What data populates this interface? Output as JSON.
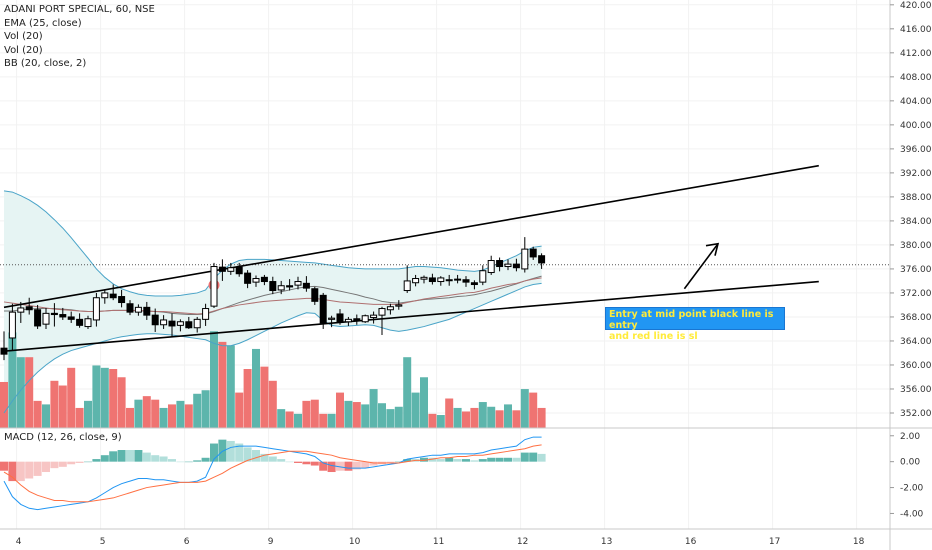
{
  "legend": {
    "symbol": "ADANI PORT SPECIAL, 60, NSE",
    "ema": "EMA (25, close)",
    "vol1": "Vol (20)",
    "vol2": "Vol (20)",
    "bb": "BB (20, close, 2)"
  },
  "macd_label": "MACD (12, 26, close, 9)",
  "annotation": "Entry at mid point black line is entry\n and red  line is sl",
  "colors": {
    "up": "#ffffff",
    "down": "#000000",
    "vol_up": "#5db5ac",
    "vol_down": "#ef7472",
    "bb_band": "#4aa4c8",
    "bb_fill": "#e6f4f3",
    "ema": "#b07070",
    "bb_basis": "#777777",
    "macd_line": "#2196f3",
    "signal_line": "#ff7043",
    "hist_up": "#5db5ac",
    "hist_down": "#ef7472",
    "hist_up_light": "#b2dfdb",
    "hist_down_light": "#f7c5c4",
    "marker": "#ef6f6f"
  },
  "chart_data": {
    "type": "candlestick",
    "title": "ADANI PORT SPECIAL, 60, NSE",
    "price_axis": {
      "ticks": [
        352,
        356,
        360,
        364,
        368,
        372,
        376,
        380,
        384,
        388,
        392,
        396,
        400,
        404,
        408,
        412,
        416,
        420
      ],
      "range": [
        349.5,
        420.8
      ]
    },
    "time_axis": {
      "ticks": [
        "4",
        "5",
        "6",
        "9",
        "10",
        "11",
        "12",
        "13",
        "16",
        "17",
        "18"
      ]
    },
    "macd_axis": {
      "ticks": [
        "2.00",
        "0.00",
        "-2.00",
        "-4.00"
      ],
      "range": [
        -5.2,
        2.6
      ]
    },
    "candles": [
      {
        "o": 362.8,
        "h": 365.6,
        "l": 360.8,
        "c": 361.8
      },
      {
        "o": 364.5,
        "h": 370.2,
        "l": 362.5,
        "c": 368.8
      },
      {
        "o": 368.8,
        "h": 370.5,
        "l": 367.0,
        "c": 369.5
      },
      {
        "o": 369.7,
        "h": 371.2,
        "l": 368.4,
        "c": 369.2
      },
      {
        "o": 369.2,
        "h": 370.0,
        "l": 366.0,
        "c": 366.5
      },
      {
        "o": 366.8,
        "h": 369.5,
        "l": 366.0,
        "c": 368.6
      },
      {
        "o": 368.6,
        "h": 370.3,
        "l": 366.4,
        "c": 368.4
      },
      {
        "o": 368.4,
        "h": 369.5,
        "l": 367.5,
        "c": 368.0
      },
      {
        "o": 368.0,
        "h": 368.9,
        "l": 367.0,
        "c": 367.6
      },
      {
        "o": 367.6,
        "h": 368.6,
        "l": 366.2,
        "c": 366.6
      },
      {
        "o": 366.4,
        "h": 368.2,
        "l": 366.0,
        "c": 367.7
      },
      {
        "o": 367.5,
        "h": 372.0,
        "l": 366.4,
        "c": 371.2
      },
      {
        "o": 371.2,
        "h": 372.6,
        "l": 370.2,
        "c": 372.0
      },
      {
        "o": 371.8,
        "h": 373.4,
        "l": 370.8,
        "c": 371.2
      },
      {
        "o": 371.4,
        "h": 372.5,
        "l": 369.6,
        "c": 370.4
      },
      {
        "o": 370.2,
        "h": 370.8,
        "l": 368.3,
        "c": 368.8
      },
      {
        "o": 368.8,
        "h": 370.1,
        "l": 368.2,
        "c": 369.6
      },
      {
        "o": 369.6,
        "h": 370.5,
        "l": 367.5,
        "c": 368.3
      },
      {
        "o": 368.3,
        "h": 369.4,
        "l": 365.5,
        "c": 366.7
      },
      {
        "o": 366.7,
        "h": 368.3,
        "l": 366.0,
        "c": 367.5
      },
      {
        "o": 367.3,
        "h": 368.6,
        "l": 364.7,
        "c": 366.5
      },
      {
        "o": 366.6,
        "h": 367.6,
        "l": 365.6,
        "c": 367.2
      },
      {
        "o": 367.2,
        "h": 368.0,
        "l": 366.0,
        "c": 366.2
      },
      {
        "o": 366.2,
        "h": 368.0,
        "l": 365.4,
        "c": 367.6
      },
      {
        "o": 367.6,
        "h": 370.2,
        "l": 366.5,
        "c": 369.4
      },
      {
        "o": 369.8,
        "h": 377.0,
        "l": 369.5,
        "c": 376.4
      },
      {
        "o": 376.3,
        "h": 377.6,
        "l": 374.0,
        "c": 375.6
      },
      {
        "o": 375.6,
        "h": 377.0,
        "l": 375.0,
        "c": 376.2
      },
      {
        "o": 376.3,
        "h": 377.0,
        "l": 374.7,
        "c": 375.2
      },
      {
        "o": 375.3,
        "h": 375.8,
        "l": 372.8,
        "c": 373.6
      },
      {
        "o": 373.8,
        "h": 374.9,
        "l": 373.0,
        "c": 374.4
      },
      {
        "o": 374.6,
        "h": 375.0,
        "l": 373.3,
        "c": 373.9
      },
      {
        "o": 373.9,
        "h": 374.7,
        "l": 371.8,
        "c": 372.4
      },
      {
        "o": 372.5,
        "h": 374.0,
        "l": 371.8,
        "c": 373.2
      },
      {
        "o": 373.2,
        "h": 374.3,
        "l": 372.4,
        "c": 373.0
      },
      {
        "o": 373.3,
        "h": 374.7,
        "l": 372.6,
        "c": 373.9
      },
      {
        "o": 373.6,
        "h": 374.8,
        "l": 372.2,
        "c": 372.8
      },
      {
        "o": 372.7,
        "h": 373.0,
        "l": 370.0,
        "c": 370.6
      },
      {
        "o": 371.6,
        "h": 372.0,
        "l": 366.0,
        "c": 367.0
      },
      {
        "o": 367.6,
        "h": 368.2,
        "l": 366.3,
        "c": 367.8
      },
      {
        "o": 368.5,
        "h": 369.3,
        "l": 366.7,
        "c": 367.1
      },
      {
        "o": 367.2,
        "h": 368.0,
        "l": 366.5,
        "c": 367.6
      },
      {
        "o": 367.7,
        "h": 368.4,
        "l": 366.7,
        "c": 367.4
      },
      {
        "o": 367.2,
        "h": 368.4,
        "l": 367.0,
        "c": 368.2
      },
      {
        "o": 367.9,
        "h": 368.9,
        "l": 366.9,
        "c": 368.3
      },
      {
        "o": 368.3,
        "h": 369.7,
        "l": 365.0,
        "c": 369.4
      },
      {
        "o": 369.2,
        "h": 370.2,
        "l": 368.4,
        "c": 369.7
      },
      {
        "o": 369.8,
        "h": 370.8,
        "l": 369.2,
        "c": 370.0
      },
      {
        "o": 372.4,
        "h": 376.6,
        "l": 372.0,
        "c": 374.0
      },
      {
        "o": 373.7,
        "h": 375.0,
        "l": 373.1,
        "c": 374.4
      },
      {
        "o": 374.3,
        "h": 374.9,
        "l": 373.6,
        "c": 374.6
      },
      {
        "o": 374.5,
        "h": 375.2,
        "l": 373.4,
        "c": 373.9
      },
      {
        "o": 373.9,
        "h": 374.8,
        "l": 373.2,
        "c": 374.5
      },
      {
        "o": 374.2,
        "h": 375.0,
        "l": 373.2,
        "c": 374.1
      },
      {
        "o": 374.2,
        "h": 375.0,
        "l": 373.6,
        "c": 374.3
      },
      {
        "o": 374.2,
        "h": 374.8,
        "l": 373.0,
        "c": 373.8
      },
      {
        "o": 373.7,
        "h": 374.1,
        "l": 372.6,
        "c": 373.4
      },
      {
        "o": 373.8,
        "h": 376.6,
        "l": 373.3,
        "c": 375.7
      },
      {
        "o": 375.4,
        "h": 378.2,
        "l": 375.0,
        "c": 377.4
      },
      {
        "o": 377.4,
        "h": 377.9,
        "l": 375.6,
        "c": 376.4
      },
      {
        "o": 376.4,
        "h": 377.6,
        "l": 375.8,
        "c": 376.8
      },
      {
        "o": 376.8,
        "h": 377.7,
        "l": 375.6,
        "c": 376.2
      },
      {
        "o": 376.0,
        "h": 381.3,
        "l": 375.4,
        "c": 379.3
      },
      {
        "o": 379.3,
        "h": 379.7,
        "l": 377.5,
        "c": 378.0
      },
      {
        "o": 378.2,
        "h": 378.6,
        "l": 376.0,
        "c": 377.0
      }
    ],
    "volume": [
      0.39,
      0.81,
      0.6,
      0.6,
      0.23,
      0.2,
      0.4,
      0.36,
      0.51,
      0.17,
      0.23,
      0.53,
      0.51,
      0.5,
      0.43,
      0.17,
      0.24,
      0.27,
      0.24,
      0.17,
      0.2,
      0.23,
      0.2,
      0.29,
      0.32,
      0.82,
      0.73,
      0.7,
      0.3,
      0.5,
      0.67,
      0.52,
      0.4,
      0.16,
      0.14,
      0.12,
      0.23,
      0.24,
      0.12,
      0.12,
      0.3,
      0.23,
      0.22,
      0.2,
      0.33,
      0.21,
      0.16,
      0.18,
      0.6,
      0.3,
      0.43,
      0.12,
      0.11,
      0.25,
      0.17,
      0.14,
      0.17,
      0.22,
      0.18,
      0.15,
      0.2,
      0.15,
      0.33,
      0.3,
      0.17
    ],
    "macd": [
      -1.5,
      -2.7,
      -3.3,
      -3.6,
      -3.7,
      -3.6,
      -3.5,
      -3.4,
      -3.3,
      -3.2,
      -3.1,
      -2.8,
      -2.4,
      -2.0,
      -1.7,
      -1.5,
      -1.3,
      -1.3,
      -1.4,
      -1.4,
      -1.5,
      -1.6,
      -1.6,
      -1.5,
      -1.2,
      0.2,
      0.8,
      1.1,
      1.2,
      1.2,
      1.2,
      1.1,
      1.0,
      0.9,
      0.8,
      0.7,
      0.6,
      0.4,
      -0.1,
      -0.3,
      -0.4,
      -0.5,
      -0.5,
      -0.5,
      -0.4,
      -0.3,
      -0.2,
      -0.1,
      0.2,
      0.3,
      0.4,
      0.5,
      0.5,
      0.6,
      0.6,
      0.6,
      0.6,
      0.7,
      0.9,
      1.0,
      1.1,
      1.2,
      1.7,
      1.9,
      1.9
    ],
    "signal": [
      -0.8,
      -1.2,
      -1.8,
      -2.3,
      -2.6,
      -2.8,
      -3.0,
      -3.0,
      -3.1,
      -3.1,
      -3.1,
      -3.0,
      -2.9,
      -2.8,
      -2.6,
      -2.4,
      -2.2,
      -2.0,
      -1.9,
      -1.8,
      -1.7,
      -1.6,
      -1.6,
      -1.6,
      -1.5,
      -1.2,
      -0.9,
      -0.5,
      -0.2,
      0.1,
      0.3,
      0.5,
      0.6,
      0.7,
      0.8,
      0.8,
      0.8,
      0.7,
      0.6,
      0.5,
      0.3,
      0.2,
      0.1,
      0.0,
      -0.1,
      -0.1,
      -0.1,
      -0.1,
      0.0,
      0.1,
      0.1,
      0.2,
      0.3,
      0.3,
      0.4,
      0.4,
      0.5,
      0.5,
      0.6,
      0.7,
      0.8,
      0.9,
      1.0,
      1.2,
      1.3
    ],
    "ema": [
      370.5,
      370.3,
      370.1,
      369.9,
      369.7,
      369.5,
      369.3,
      369.2,
      369.1,
      369.0,
      368.9,
      368.9,
      369.0,
      369.1,
      369.1,
      369.1,
      369.1,
      369.0,
      368.9,
      368.9,
      368.8,
      368.7,
      368.6,
      368.5,
      368.6,
      369.0,
      369.4,
      369.7,
      370.0,
      370.2,
      370.4,
      370.6,
      370.7,
      370.8,
      370.9,
      371.0,
      371.1,
      371.1,
      370.9,
      370.7,
      370.5,
      370.4,
      370.3,
      370.2,
      370.1,
      370.1,
      370.1,
      370.1,
      370.4,
      370.7,
      371.0,
      371.2,
      371.4,
      371.6,
      371.8,
      372.0,
      372.1,
      372.4,
      372.8,
      373.1,
      373.4,
      373.6,
      374.0,
      374.3,
      374.5
    ],
    "bb_upper": [
      389.0,
      388.8,
      388.2,
      387.5,
      386.6,
      385.5,
      384.2,
      382.8,
      381.2,
      379.5,
      377.8,
      376.0,
      374.6,
      373.5,
      372.7,
      372.2,
      371.8,
      371.6,
      371.5,
      371.5,
      371.5,
      371.6,
      371.8,
      372.0,
      372.5,
      374.4,
      375.8,
      376.8,
      377.4,
      377.6,
      377.6,
      377.6,
      377.5,
      377.4,
      377.3,
      377.2,
      377.1,
      377.0,
      376.8,
      376.6,
      376.4,
      376.2,
      376.1,
      376.0,
      376.0,
      376.0,
      376.0,
      376.0,
      376.2,
      376.4,
      376.4,
      376.3,
      376.2,
      376.0,
      375.8,
      375.7,
      375.6,
      375.8,
      376.4,
      377.0,
      377.6,
      378.2,
      379.0,
      379.6,
      379.8
    ],
    "bb_basis": [
      369.0,
      369.0,
      369.2,
      369.3,
      369.4,
      369.4,
      369.4,
      369.3,
      369.2,
      369.0,
      368.9,
      368.9,
      369.0,
      369.1,
      369.1,
      369.1,
      369.0,
      369.0,
      368.9,
      368.8,
      368.6,
      368.5,
      368.4,
      368.4,
      368.5,
      368.9,
      369.4,
      369.9,
      370.4,
      370.8,
      371.2,
      371.6,
      371.9,
      372.2,
      372.5,
      372.8,
      373.0,
      373.1,
      372.9,
      372.6,
      372.3,
      372.0,
      371.7,
      371.3,
      371.0,
      370.6,
      370.4,
      370.3,
      370.5,
      370.7,
      370.9,
      371.0,
      371.1,
      371.2,
      371.4,
      371.5,
      371.7,
      372.0,
      372.3,
      372.7,
      373.1,
      373.5,
      374.0,
      374.4,
      374.8
    ],
    "bb_lower": [
      352.0,
      354.0,
      355.8,
      357.4,
      358.8,
      360.0,
      361.0,
      361.8,
      362.4,
      362.8,
      363.2,
      363.6,
      364.0,
      364.4,
      364.7,
      364.9,
      365.1,
      365.2,
      365.2,
      365.1,
      365.0,
      364.8,
      364.6,
      364.4,
      364.2,
      363.6,
      363.2,
      363.2,
      363.6,
      364.2,
      364.9,
      365.6,
      366.3,
      367.0,
      367.6,
      368.2,
      368.7,
      368.6,
      367.4,
      366.6,
      366.4,
      366.5,
      366.6,
      366.7,
      366.6,
      366.2,
      365.8,
      365.6,
      365.8,
      366.1,
      366.4,
      366.8,
      367.2,
      367.6,
      368.2,
      368.8,
      369.4,
      370.0,
      370.6,
      371.2,
      371.8,
      372.4,
      373.0,
      373.4,
      373.6
    ],
    "trendlines": [
      {
        "color": "#000000",
        "from": {
          "bar": 0,
          "price": 369.6
        },
        "to": {
          "bar": 97,
          "price": 393.2
        }
      },
      {
        "color": "#000000",
        "from": {
          "bar": 0,
          "price": 362.3
        },
        "to": {
          "bar": 97,
          "price": 373.9
        }
      }
    ],
    "last_price_line": 376.7,
    "marker": {
      "bar": 25,
      "price": 373.3
    },
    "arrow": {
      "from": {
        "bar": 81,
        "price": 372.7
      },
      "to": {
        "bar": 85,
        "price": 380.2
      }
    },
    "day_boundaries": [
      2,
      12,
      22,
      32,
      42,
      52,
      62,
      72,
      82,
      92,
      102
    ]
  }
}
